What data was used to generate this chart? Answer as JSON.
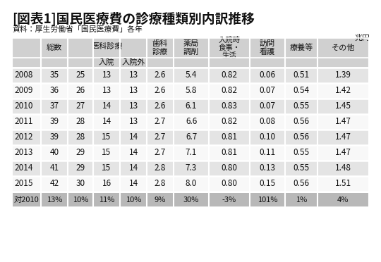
{
  "title_bracket": "[図表1]",
  "title_main": "国民医療費の診療種類別内訳推移",
  "subtitle": "資料：厚生労働省「国民医療費」各年",
  "unit": "兆円",
  "rows": [
    [
      "2008",
      "35",
      "25",
      "13",
      "13",
      "2.6",
      "5.4",
      "0.82",
      "0.06",
      "0.51",
      "1.39"
    ],
    [
      "2009",
      "36",
      "26",
      "13",
      "13",
      "2.6",
      "5.8",
      "0.82",
      "0.07",
      "0.54",
      "1.42"
    ],
    [
      "2010",
      "37",
      "27",
      "14",
      "13",
      "2.6",
      "6.1",
      "0.83",
      "0.07",
      "0.55",
      "1.45"
    ],
    [
      "2011",
      "39",
      "28",
      "14",
      "13",
      "2.7",
      "6.6",
      "0.82",
      "0.08",
      "0.56",
      "1.47"
    ],
    [
      "2012",
      "39",
      "28",
      "15",
      "14",
      "2.7",
      "6.7",
      "0.81",
      "0.10",
      "0.56",
      "1.47"
    ],
    [
      "2013",
      "40",
      "29",
      "15",
      "14",
      "2.7",
      "7.1",
      "0.81",
      "0.11",
      "0.55",
      "1.47"
    ],
    [
      "2014",
      "41",
      "29",
      "15",
      "14",
      "2.8",
      "7.3",
      "0.80",
      "0.13",
      "0.55",
      "1.48"
    ],
    [
      "2015",
      "42",
      "30",
      "16",
      "14",
      "2.8",
      "8.0",
      "0.80",
      "0.15",
      "0.56",
      "1.51"
    ]
  ],
  "last_row": [
    "対2010",
    "13%",
    "10%",
    "11%",
    "10%",
    "9%",
    "30%",
    "-3%",
    "101%",
    "1%",
    "4%"
  ],
  "header_bg": "#d0d0d0",
  "last_row_bg": "#b8b8b8",
  "row_bg_odd": "#e4e4e4",
  "row_bg_even": "#f8f8f8",
  "bg_color": "#ffffff",
  "text_color": "#000000"
}
